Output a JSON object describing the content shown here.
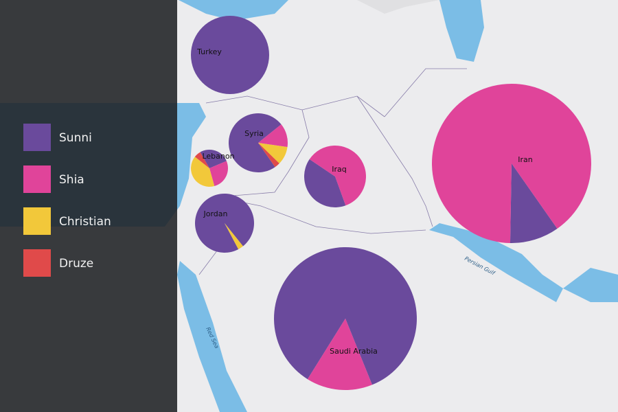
{
  "legend": [
    {
      "label": "Sunni",
      "color": "#6a4a9c"
    },
    {
      "label": "Shia",
      "color": "#e0449a"
    },
    {
      "label": "Christian",
      "color": "#f2c83a"
    },
    {
      "label": "Druze",
      "color": "#e04a4a"
    }
  ],
  "countries": [
    {
      "name": "Turkey",
      "values": [
        100,
        0,
        0,
        0
      ]
    },
    {
      "name": "Syria",
      "values": [
        74,
        13,
        10,
        3
      ]
    },
    {
      "name": "Lebanon",
      "values": [
        27,
        27,
        40,
        6
      ]
    },
    {
      "name": "Iraq",
      "values": [
        40,
        60,
        0,
        0
      ]
    },
    {
      "name": "Jordan",
      "values": [
        97,
        0,
        3,
        0
      ]
    },
    {
      "name": "Iran",
      "values": [
        10,
        90,
        0,
        0
      ]
    },
    {
      "name": "Saudi Arabia",
      "values": [
        85,
        15,
        0,
        0
      ]
    }
  ],
  "map_labels": [
    "Persian Gulf",
    "Red Sea"
  ]
}
